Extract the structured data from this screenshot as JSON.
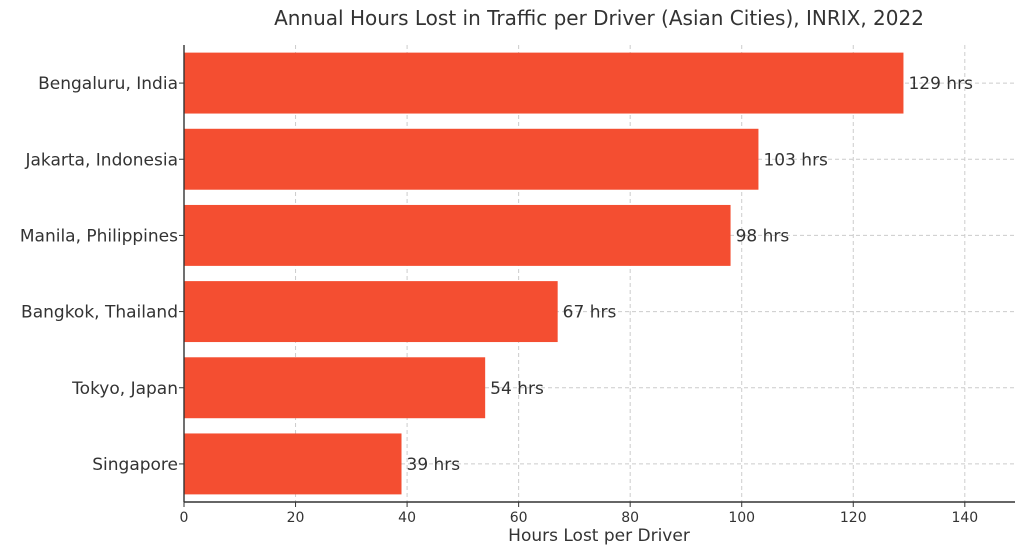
{
  "chart_data": {
    "type": "bar",
    "orientation": "horizontal",
    "title": "Annual Hours Lost in Traffic per Driver (Asian Cities), INRIX, 2022",
    "xlabel": "Hours Lost per Driver",
    "ylabel": "",
    "categories": [
      "Bengaluru, India",
      "Jakarta, Indonesia",
      "Manila, Philippines",
      "Bangkok, Thailand",
      "Tokyo, Japan",
      "Singapore"
    ],
    "values": [
      129,
      103,
      98,
      67,
      54,
      39
    ],
    "data_labels": [
      "129 hrs",
      "103 hrs",
      "98 hrs",
      "67 hrs",
      "54 hrs",
      "39 hrs"
    ],
    "xlim": [
      0,
      149
    ],
    "xticks": [
      0,
      20,
      40,
      60,
      80,
      100,
      120,
      140
    ],
    "grid": true,
    "bar_color": "#F44E31"
  }
}
